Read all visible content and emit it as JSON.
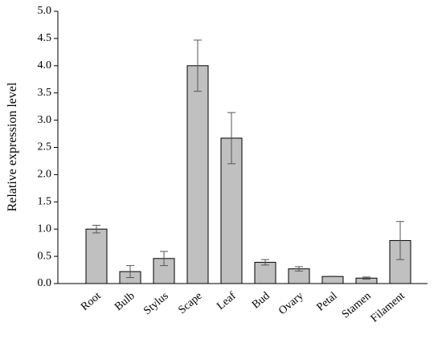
{
  "chart_data": {
    "type": "bar",
    "y_label": "Relative expression level",
    "categories": [
      "Root",
      "Bulb",
      "Stylus",
      "Scape",
      "Leaf",
      "Bud",
      "Ovary",
      "Petal",
      "Stamen",
      "Filament"
    ],
    "values": [
      1.0,
      0.22,
      0.46,
      4.0,
      2.67,
      0.39,
      0.27,
      0.13,
      0.1,
      0.79
    ],
    "errors": [
      0.07,
      0.11,
      0.13,
      0.47,
      0.47,
      0.05,
      0.04,
      0.005,
      0.02,
      0.35
    ],
    "color": "#c0c0c0",
    "ylim": [
      0,
      5
    ],
    "yticks": [
      {
        "value": 0,
        "label": "0.0"
      },
      0.5,
      {
        "value": 1,
        "label": "1.0"
      },
      1.5,
      {
        "value": 2,
        "label": "2.0"
      },
      2.5,
      {
        "value": 3,
        "label": "3.0"
      },
      3.5,
      {
        "value": 4,
        "label": "4.0"
      },
      4.5,
      {
        "value": 5,
        "label": "5.0"
      }
    ]
  }
}
